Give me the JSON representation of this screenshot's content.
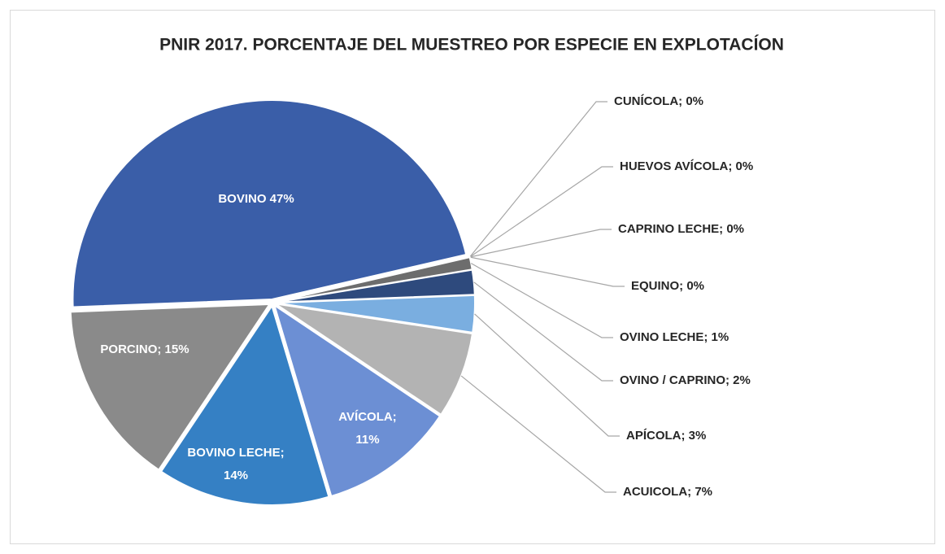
{
  "chart_data": {
    "type": "pie",
    "title": "PNIR 2017. PORCENTAJE DEL MUESTREO POR ESPECIE  EN EXPLOTACÍON",
    "values": [
      0,
      0,
      0,
      0,
      1,
      2,
      3,
      7,
      11,
      14,
      15,
      47
    ],
    "value_labels": [
      [
        "CUNÍCOLA; 0%"
      ],
      [
        "HUEVOS AVÍCOLA; 0%"
      ],
      [
        "CAPRINO LECHE; 0%"
      ],
      [
        "EQUINO; 0%"
      ],
      [
        "OVINO LECHE; 1%"
      ],
      [
        "OVINO / CAPRINO; 2%"
      ],
      [
        "APÍCOLA; 3%"
      ],
      [
        "ACUICOLA; 7%"
      ],
      [
        "AVÍCOLA;",
        "11%"
      ],
      [
        "BOVINO LECHE;",
        "14%"
      ],
      [
        "PORCINO; 15%"
      ],
      [
        "BOVINO 47%"
      ]
    ],
    "colors": [
      "#4a6fa8",
      "#a6a6a6",
      "#5b8fcf",
      "#1f3864",
      "#6d6d6d",
      "#2e4a7d",
      "#7aaee0",
      "#b3b3b3",
      "#6c8fd4",
      "#3580c4",
      "#8a8a8a",
      "#3a5ea8"
    ]
  }
}
